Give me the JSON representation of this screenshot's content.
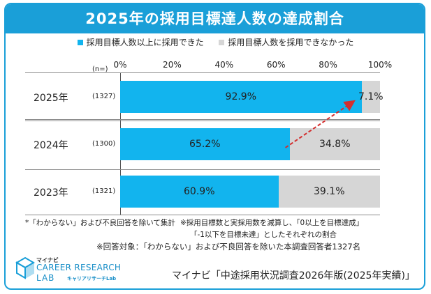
{
  "chart_data": {
    "type": "bar",
    "orientation": "horizontal",
    "stacked": true,
    "title": "2025年の採用目標達人数の達成割合",
    "n_label": "(n=)",
    "xlim": [
      0,
      100
    ],
    "tick_labels": [
      "0%",
      "20%",
      "40%",
      "60%",
      "80%",
      "100%"
    ],
    "categories": [
      "2025年",
      "2024年",
      "2023年"
    ],
    "n_values": [
      "(1327)",
      "(1300)",
      "(1321)"
    ],
    "series": [
      {
        "name": "採用目標人数以上に採用できた",
        "color": "#12b4ee",
        "values": [
          92.9,
          65.2,
          60.9
        ],
        "labels": [
          "92.9%",
          "65.2%",
          "60.9%"
        ]
      },
      {
        "name": "採用目標人数を採用できなかった",
        "color": "#d6d6d6",
        "values": [
          7.1,
          34.8,
          39.1
        ],
        "labels": [
          "7.1%",
          "34.8%",
          "39.1%"
        ]
      }
    ],
    "annotation": "arrow from 2024 boundary to 2025 boundary"
  },
  "notes": {
    "left": "*「わからない」および不良回答を除いて集計",
    "right1": "※採用目標数と実採用数を減算し、「0以上を目標達成」",
    "right2": "「-1以下を目標未達」としたそれぞれの割合",
    "respondents": "※回答対象：「わからない」および不良回答を除いた本調査回答者1327名"
  },
  "logo": {
    "top": "マイナビ",
    "main": "CAREER RESEARCH",
    "lab": "LAB",
    "sub": "キャリアリサーチLab"
  },
  "source": "マイナビ「中途採用状況調査2026年版(2025年実績)」"
}
